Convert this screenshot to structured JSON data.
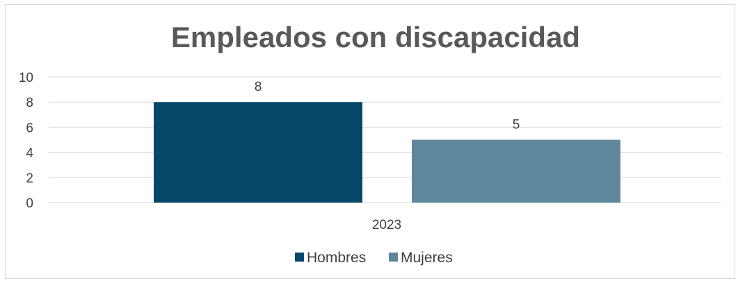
{
  "chart_data": {
    "type": "bar",
    "title": "Empleados con discapacidad",
    "categories": [
      "2023"
    ],
    "series": [
      {
        "name": "Hombres",
        "values": [
          8
        ],
        "color": "#07486a"
      },
      {
        "name": "Mujeres",
        "values": [
          5
        ],
        "color": "#5f879c"
      }
    ],
    "y_ticks": [
      "0",
      "2",
      "4",
      "6",
      "8",
      "10"
    ],
    "ylim": [
      0,
      10
    ],
    "grid": true,
    "legend_position": "bottom",
    "data_labels": [
      "8",
      "5"
    ]
  }
}
